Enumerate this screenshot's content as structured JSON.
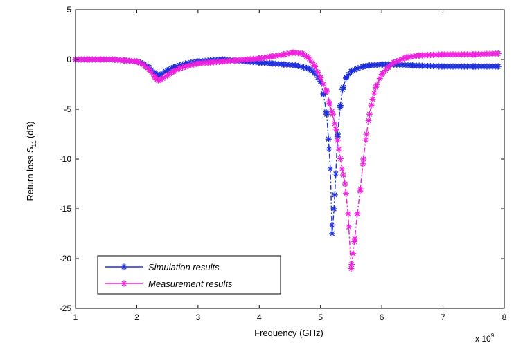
{
  "chart_data": {
    "type": "line",
    "title": "",
    "xlabel": "Frequency (GHz)",
    "ylabel": "Return loss S",
    "ylabel_subscript": "11",
    "ylabel_unit": "(dB)",
    "x_multiplier_label": "x 10",
    "x_multiplier_exponent": "9",
    "xlim": [
      1,
      8
    ],
    "ylim": [
      -25,
      5
    ],
    "xticks": [
      1,
      2,
      3,
      4,
      5,
      6,
      7,
      8
    ],
    "yticks": [
      5,
      0,
      -5,
      -10,
      -15,
      -20,
      -25
    ],
    "grid": false,
    "legend_position": "bottom-left",
    "series": [
      {
        "name": "Simulation results",
        "color": "#1f2fd8",
        "marker": "star",
        "x": [
          1.0,
          1.2,
          1.4,
          1.6,
          1.8,
          2.0,
          2.1,
          2.2,
          2.3,
          2.35,
          2.4,
          2.5,
          2.6,
          2.7,
          2.8,
          3.0,
          3.2,
          3.4,
          3.6,
          3.8,
          4.0,
          4.2,
          4.4,
          4.6,
          4.8,
          4.9,
          5.0,
          5.05,
          5.1,
          5.13,
          5.16,
          5.19,
          5.22,
          5.25,
          5.28,
          5.32,
          5.36,
          5.42,
          5.5,
          5.6,
          5.7,
          5.8,
          6.0,
          6.2,
          6.5,
          7.0,
          7.5,
          7.9
        ],
        "y": [
          0.0,
          0.0,
          0.0,
          0.0,
          -0.1,
          -0.2,
          -0.4,
          -0.8,
          -1.4,
          -1.6,
          -1.5,
          -1.1,
          -0.8,
          -0.6,
          -0.4,
          -0.2,
          -0.1,
          0.0,
          -0.1,
          -0.2,
          -0.3,
          -0.4,
          -0.5,
          -0.6,
          -0.9,
          -1.3,
          -2.2,
          -3.5,
          -5.5,
          -8.0,
          -11.0,
          -17.5,
          -15.0,
          -11.5,
          -7.5,
          -4.8,
          -3.0,
          -1.8,
          -1.2,
          -0.9,
          -0.7,
          -0.6,
          -0.5,
          -0.5,
          -0.6,
          -0.7,
          -0.7,
          -0.7
        ]
      },
      {
        "name": "Measurement results",
        "color": "#ee22dd",
        "marker": "star",
        "x": [
          1.0,
          1.2,
          1.4,
          1.6,
          1.8,
          2.0,
          2.1,
          2.2,
          2.3,
          2.35,
          2.4,
          2.5,
          2.6,
          2.7,
          2.8,
          3.0,
          3.2,
          3.4,
          3.6,
          3.8,
          4.0,
          4.2,
          4.4,
          4.55,
          4.7,
          4.8,
          4.9,
          5.0,
          5.1,
          5.15,
          5.2,
          5.25,
          5.3,
          5.35,
          5.4,
          5.45,
          5.5,
          5.53,
          5.56,
          5.6,
          5.65,
          5.7,
          5.75,
          5.8,
          5.85,
          5.9,
          6.0,
          6.1,
          6.2,
          6.4,
          6.6,
          7.0,
          7.5,
          7.9
        ],
        "y": [
          0.0,
          0.0,
          0.0,
          0.0,
          -0.1,
          -0.2,
          -0.5,
          -1.0,
          -1.8,
          -2.1,
          -2.0,
          -1.6,
          -1.2,
          -0.9,
          -0.7,
          -0.4,
          -0.3,
          -0.2,
          -0.1,
          0.0,
          0.1,
          0.3,
          0.5,
          0.7,
          0.6,
          0.2,
          -0.6,
          -1.8,
          -3.2,
          -4.5,
          -5.5,
          -7.0,
          -9.0,
          -11.0,
          -12.5,
          -15.5,
          -21.0,
          -19.5,
          -18.0,
          -15.5,
          -13.0,
          -10.0,
          -7.5,
          -5.5,
          -4.0,
          -2.8,
          -1.5,
          -0.8,
          -0.3,
          0.2,
          0.4,
          0.5,
          0.5,
          0.6
        ]
      }
    ]
  }
}
